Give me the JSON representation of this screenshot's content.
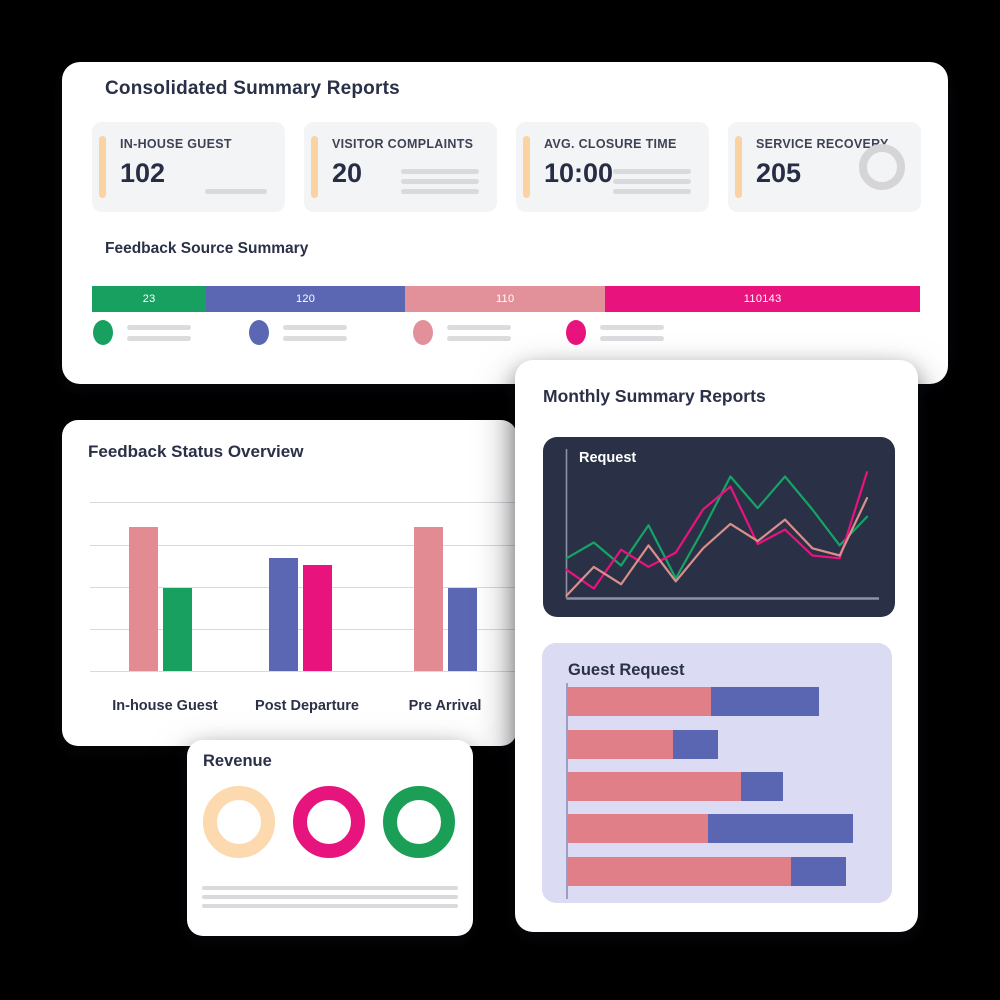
{
  "canvas": {
    "background": "#000000"
  },
  "colors": {
    "navy_text": "#2a3047",
    "green": "#17a05f",
    "blue": "#5b67b2",
    "salmon": "#e28b92",
    "magenta": "#e8137d",
    "peach_accent": "#fbd2a2",
    "stat_bg": "#f3f4f6",
    "dark_panel": "#2a3146",
    "lavender": "#dbdcf3",
    "placeholder_gray": "#d9dadd"
  },
  "consolidated": {
    "title": "Consolidated Summary Reports",
    "stats": [
      {
        "label": "IN-HOUSE GUEST",
        "value": "102",
        "placeholder": "lines-1"
      },
      {
        "label": "VISITOR COMPLAINTS",
        "value": "20",
        "placeholder": "lines-3"
      },
      {
        "label": "AVG. CLOSURE TIME",
        "value": "10:00",
        "placeholder": "lines-3"
      },
      {
        "label": "SERVICE RECOVERY",
        "value": "205",
        "placeholder": "ring"
      }
    ],
    "feedback_source": {
      "title": "Feedback Source Summary"
    }
  },
  "status_overview": {
    "title": "Feedback Status Overview"
  },
  "revenue": {
    "title": "Revenue"
  },
  "monthly": {
    "title": "Monthly Summary Reports",
    "request_title": "Request",
    "guest_request_title": "Guest Request"
  },
  "chart_data": [
    {
      "id": "feedback-source-summary",
      "type": "bar",
      "variant": "horizontal-stacked-single",
      "title": "Feedback Source Summary",
      "segments": [
        {
          "value": 23,
          "color": "#17a05f",
          "width_pct": 13.8
        },
        {
          "value": 120,
          "color": "#5b67b2",
          "width_pct": 24.0
        },
        {
          "value": 110,
          "color": "#e2909a",
          "width_pct": 24.2
        },
        {
          "value": 110143,
          "color": "#e8137d",
          "width_pct": 38.0
        }
      ],
      "legend": [
        "#17a05f",
        "#5b67b2",
        "#e2909a",
        "#e8137d"
      ],
      "legend_position": "bottom"
    },
    {
      "id": "feedback-status-overview",
      "type": "bar",
      "title": "Feedback Status Overview",
      "categories": [
        "In-house Guest",
        "Post Departure",
        "Pre Arrival"
      ],
      "groups": [
        {
          "category": "In-house Guest",
          "bars": [
            {
              "color": "#e28b92",
              "value": 85
            },
            {
              "color": "#17a05f",
              "value": 49
            }
          ]
        },
        {
          "category": "Post Departure",
          "bars": [
            {
              "color": "#5b67b2",
              "value": 67
            },
            {
              "color": "#e8137d",
              "value": 63
            }
          ]
        },
        {
          "category": "Pre Arrival",
          "bars": [
            {
              "color": "#e28b92",
              "value": 85
            },
            {
              "color": "#5b67b2",
              "value": 49
            }
          ]
        }
      ],
      "ylim": [
        0,
        100
      ],
      "gridlines": 5,
      "grid": true
    },
    {
      "id": "request-line",
      "type": "line",
      "title": "Request",
      "x": [
        1,
        2,
        3,
        4,
        5,
        6,
        7,
        8,
        9,
        10,
        11,
        12
      ],
      "series": [
        {
          "name": "green",
          "color": "#14a466",
          "values": [
            28,
            39,
            23,
            51,
            14,
            48,
            85,
            63,
            85,
            62,
            37,
            57
          ]
        },
        {
          "name": "magenta",
          "color": "#e8137d",
          "values": [
            20,
            7,
            34,
            22,
            32,
            62,
            78,
            38,
            48,
            30,
            28,
            88
          ]
        },
        {
          "name": "salmon",
          "color": "#d98f8b",
          "values": [
            2,
            22,
            10,
            37,
            12,
            35,
            52,
            40,
            55,
            35,
            30,
            70
          ]
        }
      ],
      "ylim": [
        0,
        100
      ],
      "grid": false
    },
    {
      "id": "guest-request",
      "type": "bar",
      "variant": "horizontal-stacked",
      "title": "Guest Request",
      "categories": [
        "row-1",
        "row-2",
        "row-3",
        "row-4",
        "row-5"
      ],
      "series": [
        {
          "name": "salmon",
          "color": "#e17f89",
          "values": [
            144,
            106,
            174,
            141,
            224
          ]
        },
        {
          "name": "blue",
          "color": "#5a66b1",
          "values": [
            108,
            45,
            42,
            145,
            55
          ]
        }
      ],
      "xmax": 300
    },
    {
      "id": "revenue-donuts",
      "type": "pie",
      "variant": "donut-trio",
      "title": "Revenue",
      "rings": [
        "#fcd9ae",
        "#e8147e",
        "#1b9e55"
      ]
    }
  ]
}
